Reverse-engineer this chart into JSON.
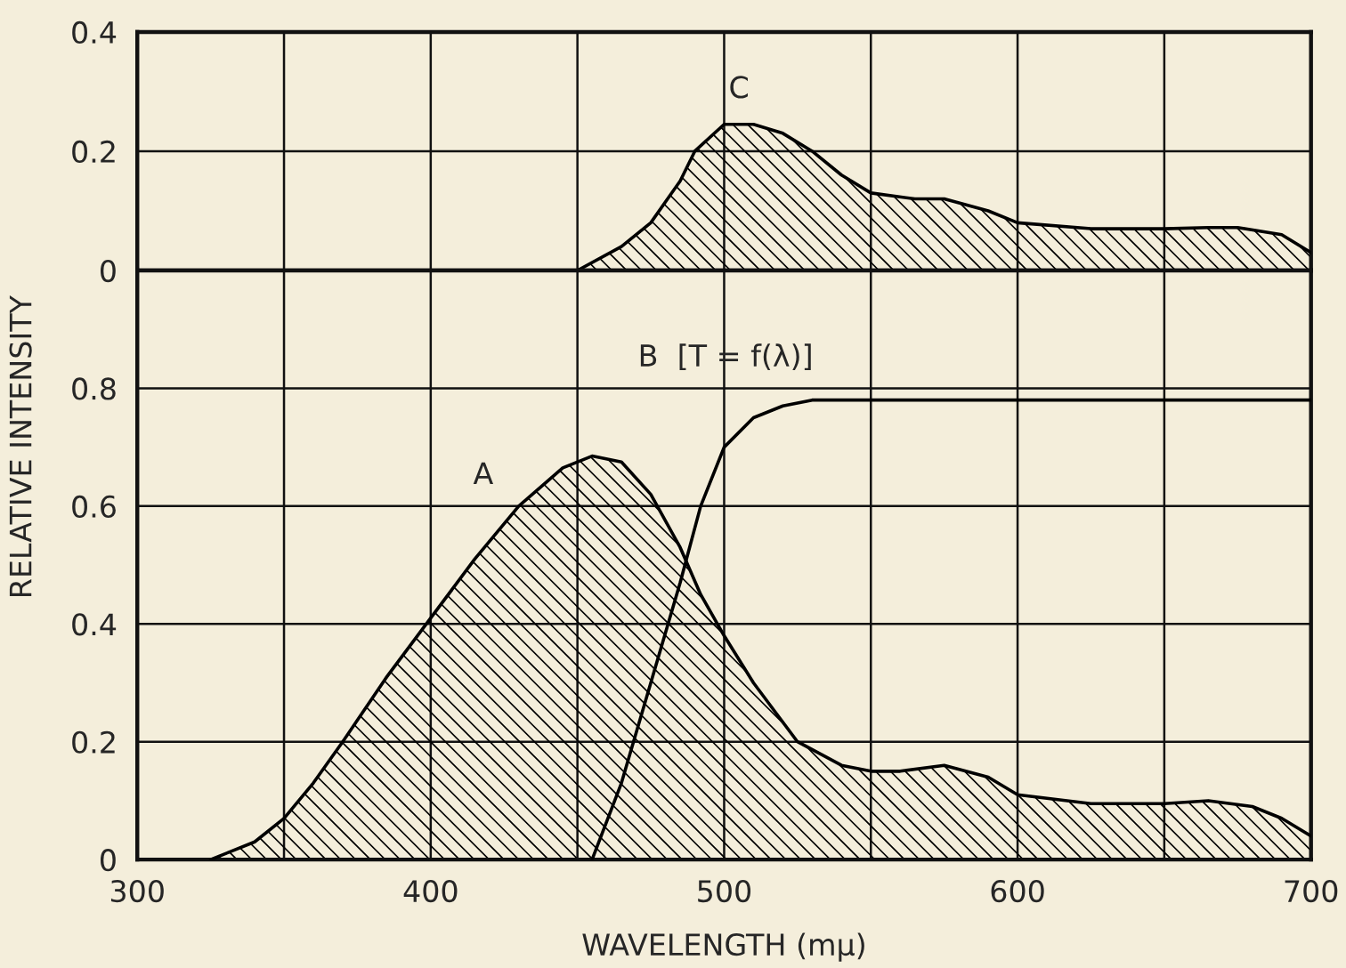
{
  "chart_data": [
    {
      "type": "area",
      "xlim": [
        300,
        700
      ],
      "ylim": [
        0,
        0.4
      ],
      "xticks": [
        300,
        {
          "value": 350,
          "label": null
        },
        400,
        {
          "value": 450,
          "label": null
        },
        500,
        {
          "value": 550,
          "label": null
        },
        600,
        {
          "value": 650,
          "label": null
        },
        700
      ],
      "yticks": [
        0,
        0.2,
        0.4
      ],
      "tick_labels": "y",
      "grid": true,
      "legend": false,
      "series": [
        {
          "name": "C",
          "color": "#000000",
          "x": [
            300,
            450,
            465,
            475,
            485,
            490,
            500,
            510,
            520,
            530,
            540,
            550,
            565,
            575,
            590,
            600,
            625,
            650,
            665,
            675,
            690,
            700
          ],
          "values": [
            0,
            0,
            0.04,
            0.08,
            0.15,
            0.2,
            0.245,
            0.245,
            0.23,
            0.2,
            0.16,
            0.13,
            0.12,
            0.12,
            0.1,
            0.08,
            0.07,
            0.07,
            0.072,
            0.072,
            0.06,
            0.03
          ]
        }
      ]
    },
    {
      "type": "area",
      "xlim": [
        300,
        700
      ],
      "ylim": [
        0,
        1.0
      ],
      "xticks": [
        300,
        {
          "value": 350,
          "label": null
        },
        400,
        {
          "value": 450,
          "label": null
        },
        500,
        {
          "value": 550,
          "label": null
        },
        600,
        {
          "value": 650,
          "label": null
        },
        700
      ],
      "yticks": [
        0,
        0.2,
        0.4,
        0.6,
        0.8
      ],
      "grid": true,
      "legend": false,
      "xlabel": "WAVELENGTH (mμ)",
      "ylabel": "RELATIVE INTENSITY",
      "series": [
        {
          "name": "A",
          "color": "#000000",
          "x": [
            325,
            340,
            350,
            360,
            370,
            385,
            400,
            415,
            430,
            445,
            455,
            465,
            475,
            485,
            492,
            500,
            510,
            525,
            540,
            550,
            560,
            575,
            590,
            600,
            625,
            650,
            665,
            680,
            690,
            700
          ],
          "values": [
            0,
            0.03,
            0.07,
            0.13,
            0.2,
            0.31,
            0.41,
            0.51,
            0.6,
            0.665,
            0.685,
            0.675,
            0.62,
            0.53,
            0.45,
            0.38,
            0.3,
            0.2,
            0.16,
            0.15,
            0.15,
            0.16,
            0.14,
            0.11,
            0.095,
            0.095,
            0.1,
            0.09,
            0.07,
            0.04
          ]
        },
        {
          "type": "line",
          "name": "B  [T = f(λ)]",
          "color": "#000000",
          "x": [
            455,
            465,
            475,
            485,
            492,
            500,
            510,
            520,
            530,
            550,
            600,
            700
          ],
          "values": [
            0,
            0.13,
            0.3,
            0.47,
            0.6,
            0.7,
            0.75,
            0.77,
            0.78,
            0.78,
            0.78,
            0.78
          ]
        }
      ]
    }
  ]
}
